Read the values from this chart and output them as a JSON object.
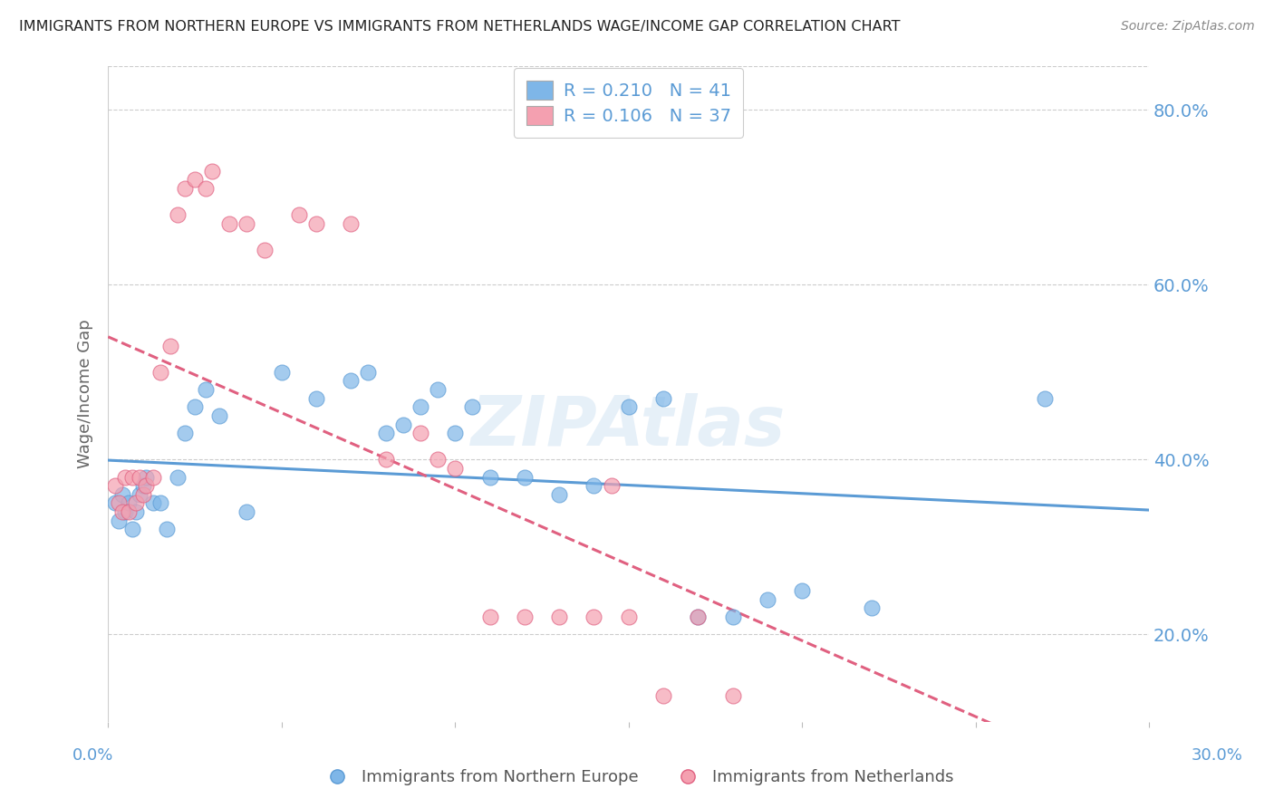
{
  "title": "IMMIGRANTS FROM NORTHERN EUROPE VS IMMIGRANTS FROM NETHERLANDS WAGE/INCOME GAP CORRELATION CHART",
  "source": "Source: ZipAtlas.com",
  "ylabel": "Wage/Income Gap",
  "watermark": "ZIPAtlas",
  "xlim": [
    0.0,
    30.0
  ],
  "ylim": [
    10.0,
    85.0
  ],
  "yticks": [
    20.0,
    40.0,
    60.0,
    80.0
  ],
  "xticks": [
    0.0,
    5.0,
    10.0,
    15.0,
    20.0,
    25.0,
    30.0
  ],
  "blue_R": 0.21,
  "blue_N": 41,
  "pink_R": 0.106,
  "pink_N": 37,
  "blue_color": "#7EB6E8",
  "blue_edge_color": "#5B9BD5",
  "pink_color": "#F4A0B0",
  "pink_edge_color": "#E06080",
  "blue_label": "Immigrants from Northern Europe",
  "pink_label": "Immigrants from Netherlands",
  "title_color": "#222222",
  "axis_color": "#5B9BD5",
  "legend_text_color": "#5B9BD5",
  "blue_x": [
    0.2,
    0.3,
    0.4,
    0.5,
    0.6,
    0.7,
    0.8,
    0.9,
    1.0,
    1.1,
    1.3,
    1.5,
    1.7,
    2.0,
    2.2,
    2.5,
    2.8,
    3.2,
    4.0,
    5.0,
    6.0,
    7.0,
    7.5,
    8.0,
    8.5,
    9.0,
    9.5,
    10.0,
    10.5,
    11.0,
    12.0,
    13.0,
    14.0,
    15.0,
    16.0,
    17.0,
    18.0,
    19.0,
    20.0,
    22.0,
    27.0
  ],
  "blue_y": [
    35,
    33,
    36,
    34,
    35,
    32,
    34,
    36,
    37,
    38,
    35,
    35,
    32,
    38,
    43,
    46,
    48,
    45,
    34,
    50,
    47,
    49,
    50,
    43,
    44,
    46,
    48,
    43,
    46,
    38,
    38,
    36,
    37,
    46,
    47,
    22,
    22,
    24,
    25,
    23,
    47
  ],
  "pink_x": [
    0.2,
    0.3,
    0.4,
    0.5,
    0.6,
    0.7,
    0.8,
    0.9,
    1.0,
    1.1,
    1.3,
    1.5,
    1.8,
    2.0,
    2.2,
    2.5,
    2.8,
    3.0,
    3.5,
    4.0,
    4.5,
    5.5,
    6.0,
    7.0,
    8.0,
    9.0,
    9.5,
    10.0,
    11.0,
    12.0,
    13.0,
    14.0,
    14.5,
    15.0,
    16.0,
    17.0,
    18.0
  ],
  "pink_y": [
    37,
    35,
    34,
    38,
    34,
    38,
    35,
    38,
    36,
    37,
    38,
    50,
    53,
    68,
    71,
    72,
    71,
    73,
    67,
    67,
    64,
    68,
    67,
    67,
    40,
    43,
    40,
    39,
    22,
    22,
    22,
    22,
    37,
    22,
    13,
    22,
    13
  ],
  "background_color": "#FFFFFF",
  "plot_bg_color": "#FFFFFF"
}
